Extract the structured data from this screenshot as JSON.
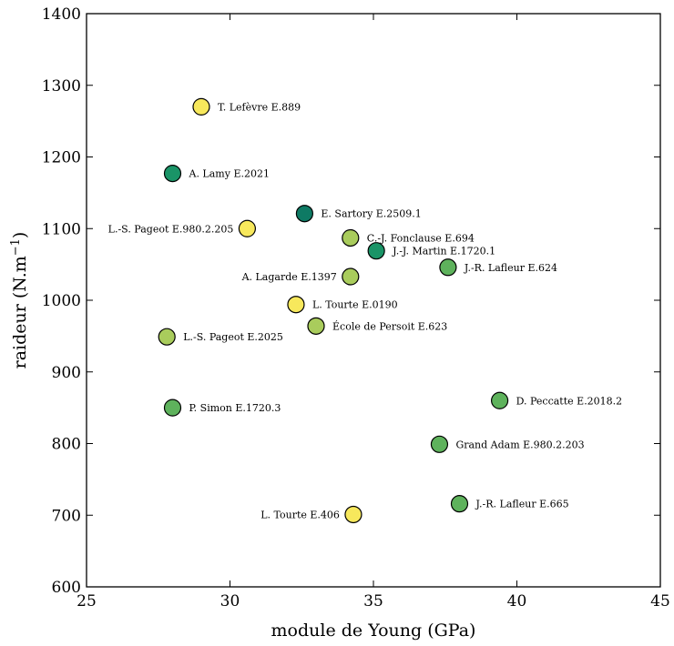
{
  "chart_data": {
    "type": "scatter",
    "xlabel": "module de Young (GPa)",
    "ylabel": "raideur (N.m",
    "ylabel_exponent": "−1",
    "ylabel_suffix": ")",
    "xlim": [
      25,
      45
    ],
    "ylim": [
      600,
      1400
    ],
    "xticks": [
      25,
      30,
      35,
      40,
      45
    ],
    "yticks": [
      600,
      700,
      800,
      900,
      1000,
      1100,
      1200,
      1300,
      1400
    ],
    "grid": false,
    "points": [
      {
        "label": "T. Lefèvre E.889",
        "x": 29.0,
        "y": 1270,
        "color": "#f7e85c",
        "label_side": "right"
      },
      {
        "label": "A. Lamy E.2021",
        "x": 28.0,
        "y": 1177,
        "color": "#1a9467",
        "label_side": "right"
      },
      {
        "label": "E. Sartory E.2509.1",
        "x": 32.6,
        "y": 1121,
        "color": "#0e7a64",
        "label_side": "right"
      },
      {
        "label": "L.-S. Pageot E.980.2.205",
        "x": 30.6,
        "y": 1100,
        "color": "#f7e85c",
        "label_side": "left"
      },
      {
        "label": "C.-J. Fonclause E.694",
        "x": 34.2,
        "y": 1087,
        "color": "#a9cc5c",
        "label_side": "right"
      },
      {
        "label": "J.-J. Martin E.1720.1",
        "x": 35.1,
        "y": 1069,
        "color": "#1a9467",
        "label_side": "right"
      },
      {
        "label": "J.-R. Lafleur E.624",
        "x": 37.6,
        "y": 1046,
        "color": "#5eb25c",
        "label_side": "right"
      },
      {
        "label": "A. Lagarde E.1397",
        "x": 34.2,
        "y": 1033,
        "color": "#a9cc5c",
        "label_side": "left"
      },
      {
        "label": "L. Tourte E.0190",
        "x": 32.3,
        "y": 994,
        "color": "#f7e85c",
        "label_side": "right"
      },
      {
        "label": "École de Persoit E.623",
        "x": 33.0,
        "y": 964,
        "color": "#a9cc5c",
        "label_side": "right"
      },
      {
        "label": "L.-S. Pageot E.2025",
        "x": 27.8,
        "y": 949,
        "color": "#a9cc5c",
        "label_side": "right"
      },
      {
        "label": "P. Simon E.1720.3",
        "x": 28.0,
        "y": 850,
        "color": "#5eb25c",
        "label_side": "right"
      },
      {
        "label": "D. Peccatte E.2018.2",
        "x": 39.4,
        "y": 860,
        "color": "#5eb25c",
        "label_side": "right"
      },
      {
        "label": "Grand Adam E.980.2.203",
        "x": 37.3,
        "y": 799,
        "color": "#5eb25c",
        "label_side": "right"
      },
      {
        "label": "J.-R. Lafleur E.665",
        "x": 38.0,
        "y": 716,
        "color": "#5eb25c",
        "label_side": "right"
      },
      {
        "label": "L. Tourte E.406",
        "x": 34.3,
        "y": 701,
        "color": "#f7e85c",
        "label_side": "left"
      }
    ]
  }
}
